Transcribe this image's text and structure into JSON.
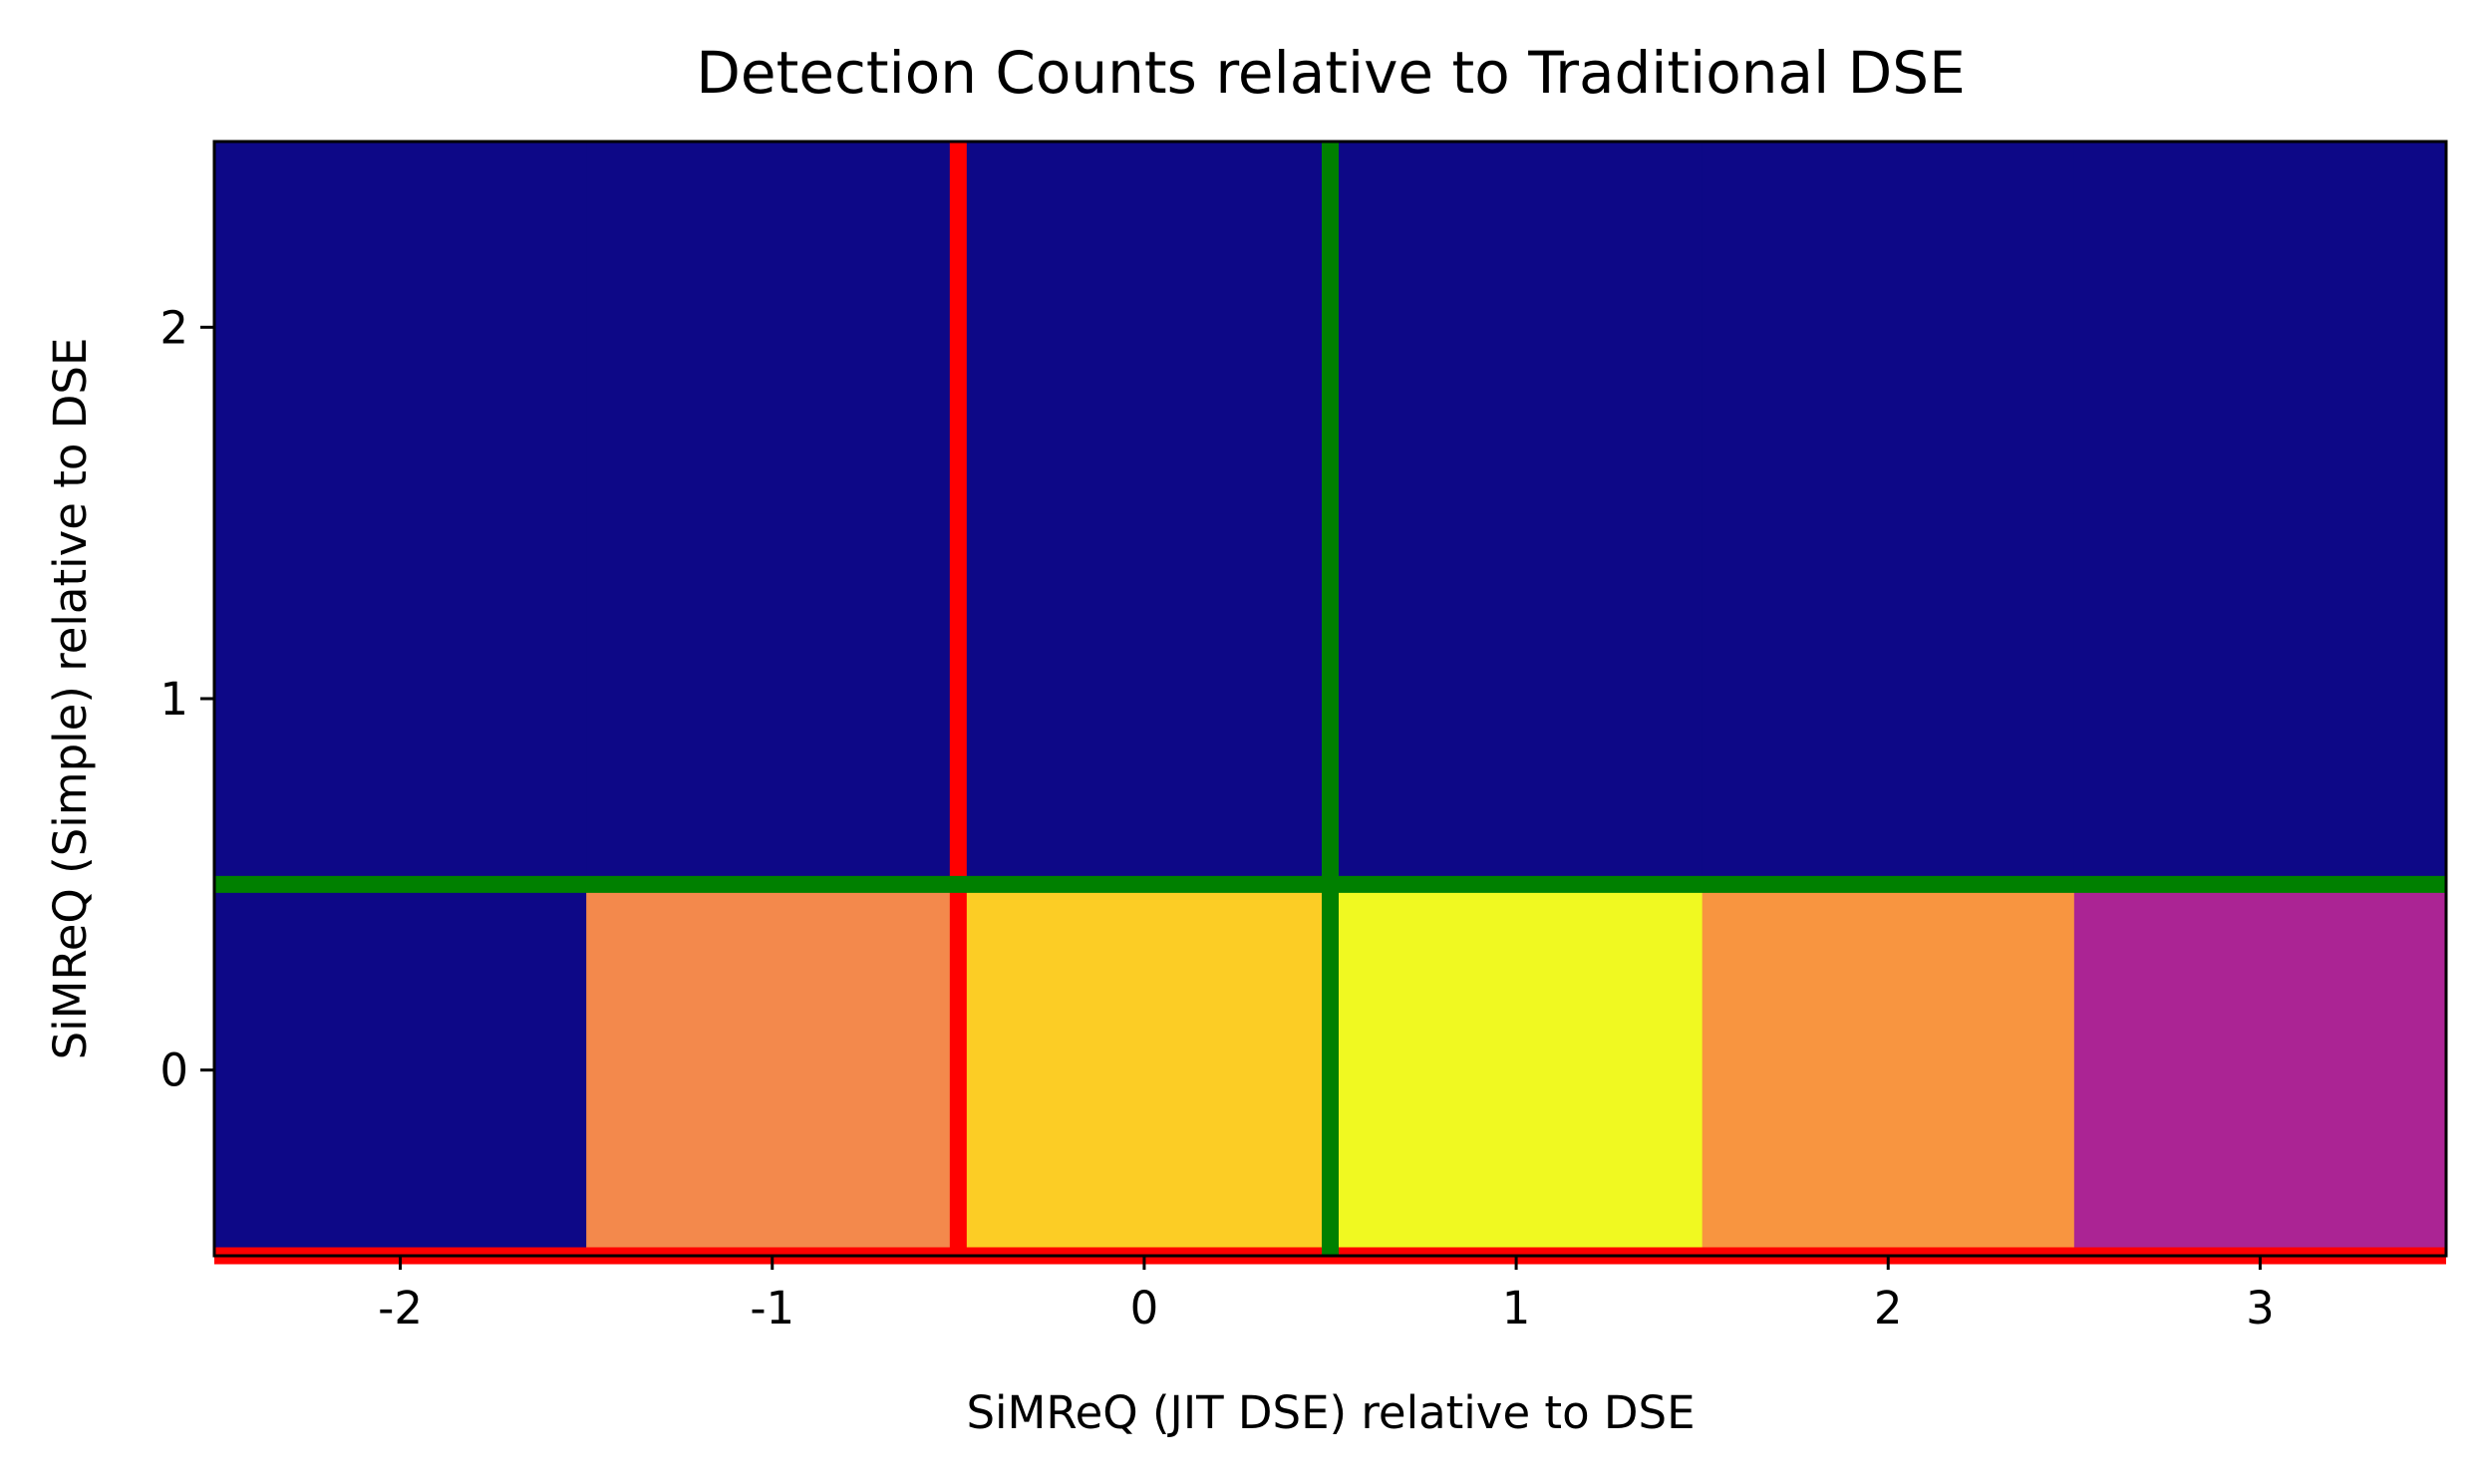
{
  "chart_data": {
    "type": "heatmap",
    "title": "Detection Counts relative to Traditional DSE",
    "xlabel": "SiMReQ (JIT DSE) relative to DSE",
    "ylabel": "SiMReQ (Simple) relative to DSE",
    "x_categories": [
      -2,
      -1,
      0,
      1,
      2,
      3
    ],
    "y_categories": [
      0,
      1,
      2
    ],
    "xlim": [
      -2.5,
      3.5
    ],
    "ylim": [
      -0.5,
      2.5
    ],
    "x_tick_labels": [
      "-2",
      "-1",
      "0",
      "1",
      "2",
      "3"
    ],
    "y_tick_labels": [
      "0",
      "1",
      "2"
    ],
    "colormap": "plasma",
    "cells": [
      {
        "x": -2,
        "y": 0,
        "color": "#0d0887"
      },
      {
        "x": -1,
        "y": 0,
        "color": "#f3894c"
      },
      {
        "x": 0,
        "y": 0,
        "color": "#fccd25"
      },
      {
        "x": 1,
        "y": 0,
        "color": "#f0f921"
      },
      {
        "x": 2,
        "y": 0,
        "color": "#f89540"
      },
      {
        "x": 3,
        "y": 0,
        "color": "#ab2494"
      },
      {
        "x": -2,
        "y": 1,
        "color": "#0d0887"
      },
      {
        "x": -1,
        "y": 1,
        "color": "#0d0887"
      },
      {
        "x": 0,
        "y": 1,
        "color": "#0d0887"
      },
      {
        "x": 1,
        "y": 1,
        "color": "#0d0887"
      },
      {
        "x": 2,
        "y": 1,
        "color": "#0d0887"
      },
      {
        "x": 3,
        "y": 1,
        "color": "#0d0887"
      },
      {
        "x": -2,
        "y": 2,
        "color": "#0d0887"
      },
      {
        "x": -1,
        "y": 2,
        "color": "#0d0887"
      },
      {
        "x": 0,
        "y": 2,
        "color": "#0d0887"
      },
      {
        "x": 1,
        "y": 2,
        "color": "#0d0887"
      },
      {
        "x": 2,
        "y": 2,
        "color": "#0d0887"
      },
      {
        "x": 3,
        "y": 2,
        "color": "#0d0887"
      }
    ],
    "reference_lines": [
      {
        "orientation": "vertical",
        "x": -0.5,
        "color": "#ff0000"
      },
      {
        "orientation": "horizontal",
        "y": -0.5,
        "color": "#ff0000"
      },
      {
        "orientation": "vertical",
        "x": 0.5,
        "color": "#008000"
      },
      {
        "orientation": "horizontal",
        "y": 0.5,
        "color": "#008000"
      }
    ],
    "grid": false,
    "legend": "none"
  }
}
